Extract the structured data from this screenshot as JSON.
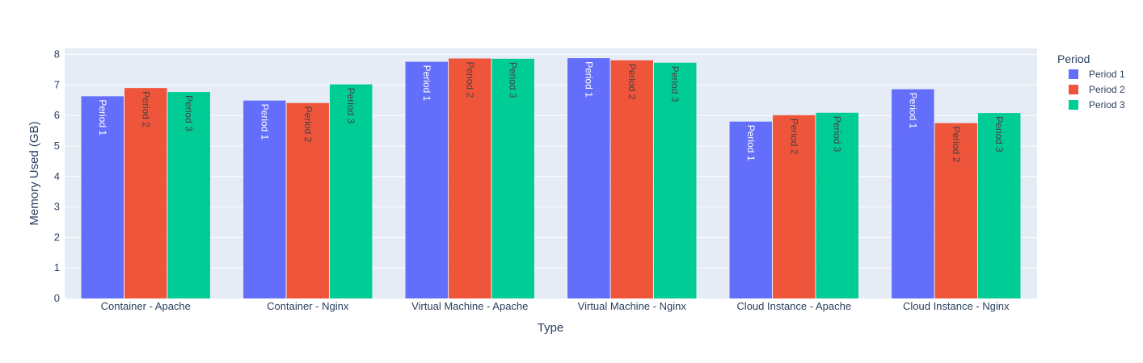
{
  "chart_data": {
    "type": "bar",
    "xlabel": "Type",
    "ylabel": "Memory Used (GB)",
    "ylim": [
      0,
      8.2
    ],
    "yticks": [
      0,
      1,
      2,
      3,
      4,
      5,
      6,
      7,
      8
    ],
    "grid": true,
    "legend": {
      "title": "Period",
      "placement": "top-right"
    },
    "categories": [
      "Container - Apache",
      "Container - Nginx",
      "Virtual Machine - Apache",
      "Virtual Machine - Nginx",
      "Cloud Instance - Apache",
      "Cloud Instance - Nginx"
    ],
    "series": [
      {
        "name": "Period 1",
        "color": "#636efa",
        "label_color": "#ffffff",
        "values": [
          6.63,
          6.49,
          7.76,
          7.88,
          5.8,
          6.86
        ]
      },
      {
        "name": "Period 2",
        "color": "#ef553b",
        "label_color": "#444444",
        "values": [
          6.9,
          6.41,
          7.87,
          7.81,
          6.01,
          5.75
        ]
      },
      {
        "name": "Period 3",
        "color": "#00cc96",
        "label_color": "#444444",
        "values": [
          6.77,
          7.02,
          7.86,
          7.73,
          6.09,
          6.08
        ]
      }
    ]
  }
}
